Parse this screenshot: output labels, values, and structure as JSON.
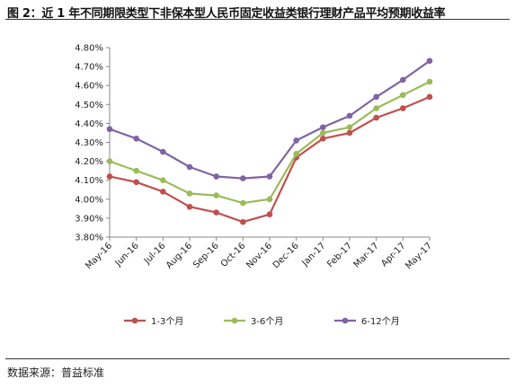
{
  "figure": {
    "caption": "图 2：近 1 年不同期限类型下非保本型人民币固定收益类银行理财产品平均预期收益率",
    "source": "数据来源：普益标准"
  },
  "chart_data": {
    "type": "line",
    "title": "",
    "xlabel": "",
    "ylabel": "",
    "categories": [
      "May-16",
      "Jun-16",
      "Jul-16",
      "Aug-16",
      "Sep-16",
      "Oct-16",
      "Nov-16",
      "Dec-16",
      "Jan-17",
      "Feb-17",
      "Mar-17",
      "Apr-17",
      "May-17"
    ],
    "y_ticks": [
      "3.80%",
      "3.90%",
      "4.00%",
      "4.10%",
      "4.20%",
      "4.30%",
      "4.40%",
      "4.50%",
      "4.60%",
      "4.70%",
      "4.80%"
    ],
    "ylim": [
      3.8,
      4.8
    ],
    "grid": false,
    "legend_position": "bottom",
    "series": [
      {
        "name": "1-3个月",
        "color": "#c0504d",
        "values": [
          4.12,
          4.09,
          4.04,
          3.96,
          3.93,
          3.88,
          3.92,
          4.22,
          4.32,
          4.35,
          4.43,
          4.48,
          4.54
        ]
      },
      {
        "name": "3-6个月",
        "color": "#9bbb59",
        "values": [
          4.2,
          4.15,
          4.1,
          4.03,
          4.02,
          3.98,
          4.0,
          4.24,
          4.35,
          4.38,
          4.48,
          4.55,
          4.62
        ]
      },
      {
        "name": "6-12个月",
        "color": "#8064a2",
        "values": [
          4.37,
          4.32,
          4.25,
          4.17,
          4.12,
          4.11,
          4.12,
          4.31,
          4.38,
          4.44,
          4.54,
          4.63,
          4.73
        ]
      }
    ]
  }
}
